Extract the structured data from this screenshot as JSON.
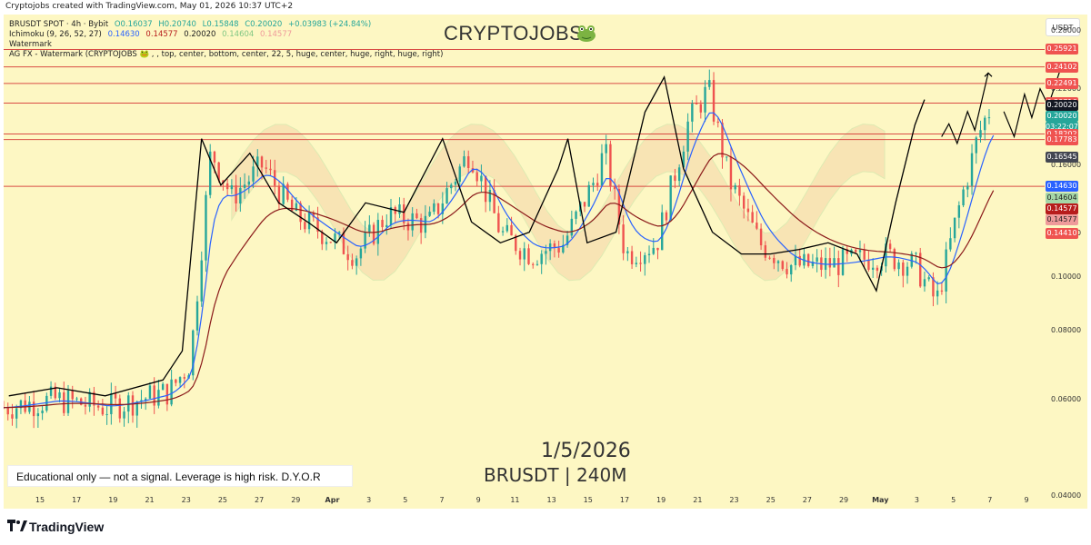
{
  "header": {
    "caption": "Cryptojobs created with TradingView.com, May 01, 2026 10:37 UTC+2"
  },
  "legend": {
    "symbol_line": "BRUSDT SPOT · 4h · Bybit",
    "ohlc": {
      "o": "O0.16037",
      "h": "H0.20740",
      "l": "L0.15848",
      "c": "C0.20020",
      "chg": "+0.03983 (+24.84%)"
    },
    "ichimoku_label": "Ichimoku (9, 26, 52, 27)",
    "ichimoku_values": [
      "0.14630",
      "0.14577",
      "0.20020",
      "0.14604",
      "0.14577"
    ],
    "watermark_label": "Watermark",
    "agfx_label": "AG FX - Watermark (CRYPTOJOBS 🐸 , , top, center, bottom, center, 22, 5, huge, center, huge, right, huge, right)"
  },
  "watermark": "CRYPTOJOBS",
  "overlay": {
    "date": "1/5/2026",
    "pair": "BRUSDT | 240M",
    "disclaimer": "Educational only — not a signal. Leverage is high risk. D.Y.O.R"
  },
  "currency": "USDT",
  "footer": {
    "brand": "TradingView"
  },
  "colors": {
    "background": "#fdf7c3",
    "up": "#26a69a",
    "down": "#ef5350",
    "level_line": "#d32f2f",
    "tenkan": "#2962ff",
    "kijun": "#8b1a1a",
    "projection": "#000000",
    "cloud_fill": "#f5d6a8"
  },
  "price_badges": [
    {
      "label": "0.25921",
      "value": 0.25921,
      "color": "#ef5350"
    },
    {
      "label": "0.24102",
      "value": 0.24102,
      "color": "#ef5350"
    },
    {
      "label": "0.22491",
      "value": 0.22491,
      "color": "#ef5350"
    },
    {
      "label": "0.20716",
      "value": 0.20716,
      "color": "#ef5350"
    },
    {
      "label": "0.20020",
      "value": 0.2002,
      "color": "#131722",
      "offset": -6
    },
    {
      "label": "0.20020",
      "value": 0.2002,
      "color": "#26a69a",
      "offset": 6
    },
    {
      "label": "03:22:07",
      "value": 0.2002,
      "color": "#26a69a",
      "offset": 18
    },
    {
      "label": "0.18202",
      "value": 0.18202,
      "color": "#ef5350"
    },
    {
      "label": "0.17783",
      "value": 0.17783,
      "color": "#ef5350"
    },
    {
      "label": "0.16545",
      "value": 0.16545,
      "color": "#434651"
    },
    {
      "label": "0.14630",
      "value": 0.1463,
      "color": "#2962ff"
    },
    {
      "label": "0.14604",
      "value": 0.14604,
      "color": "#a5d6a7",
      "offset": 12,
      "textcolor": "#222"
    },
    {
      "label": "0.14577",
      "value": 0.14577,
      "color": "#b71c1c",
      "offset": 24
    },
    {
      "label": "0.14577",
      "value": 0.14577,
      "color": "#ef9a9a",
      "offset": 36,
      "textcolor": "#222"
    },
    {
      "label": "0.14410",
      "value": 0.1441,
      "color": "#ef5350",
      "offset": 48
    }
  ],
  "chart_data": {
    "type": "candlestick",
    "y_scale": "log",
    "y_ticks": [
      "0.28000",
      "0.22000",
      "0.16000",
      "0.12000",
      "0.10000",
      "0.08000",
      "0.06000",
      "0.04000"
    ],
    "x_ticks": [
      "15",
      "17",
      "19",
      "21",
      "23",
      "25",
      "27",
      "29",
      "Apr",
      "3",
      "5",
      "7",
      "9",
      "11",
      "13",
      "15",
      "17",
      "19",
      "21",
      "23",
      "25",
      "27",
      "29",
      "May",
      "3",
      "5",
      "7",
      "9"
    ],
    "horizontal_levels": [
      0.25921,
      0.24102,
      0.22491,
      0.20716,
      0.18202,
      0.17783,
      0.1463
    ],
    "price_path": [
      [
        0,
        0.058
      ],
      [
        0.05,
        0.06
      ],
      [
        0.1,
        0.058
      ],
      [
        0.16,
        0.062
      ],
      [
        0.18,
        0.07
      ],
      [
        0.2,
        0.17
      ],
      [
        0.22,
        0.14
      ],
      [
        0.25,
        0.16
      ],
      [
        0.28,
        0.13
      ],
      [
        0.31,
        0.12
      ],
      [
        0.34,
        0.11
      ],
      [
        0.37,
        0.13
      ],
      [
        0.41,
        0.125
      ],
      [
        0.45,
        0.17
      ],
      [
        0.48,
        0.12
      ],
      [
        0.51,
        0.11
      ],
      [
        0.54,
        0.115
      ],
      [
        0.57,
        0.15
      ],
      [
        0.58,
        0.17
      ],
      [
        0.6,
        0.11
      ],
      [
        0.63,
        0.115
      ],
      [
        0.66,
        0.19
      ],
      [
        0.68,
        0.22
      ],
      [
        0.7,
        0.15
      ],
      [
        0.73,
        0.115
      ],
      [
        0.76,
        0.105
      ],
      [
        0.79,
        0.105
      ],
      [
        0.82,
        0.107
      ],
      [
        0.85,
        0.11
      ],
      [
        0.88,
        0.105
      ],
      [
        0.9,
        0.09
      ],
      [
        0.92,
        0.13
      ],
      [
        0.94,
        0.18
      ],
      [
        0.95,
        0.2002
      ]
    ],
    "projection_path": [
      [
        0.905,
        0.18
      ],
      [
        0.912,
        0.19
      ],
      [
        0.92,
        0.175
      ],
      [
        0.93,
        0.2
      ],
      [
        0.937,
        0.185
      ],
      [
        0.95,
        0.235
      ]
    ],
    "projection_path_2": [
      [
        0.965,
        0.2
      ],
      [
        0.975,
        0.18
      ],
      [
        0.985,
        0.215
      ],
      [
        0.992,
        0.195
      ],
      [
        1.0,
        0.22
      ],
      [
        1.008,
        0.205
      ],
      [
        1.02,
        0.24
      ]
    ]
  }
}
